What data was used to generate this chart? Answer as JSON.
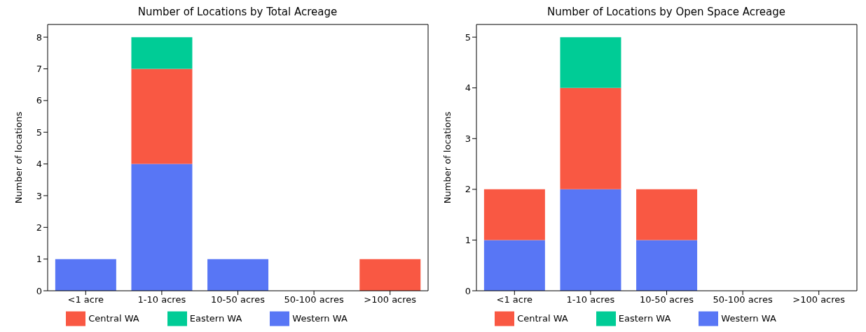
{
  "chart_data": [
    {
      "type": "bar",
      "title": "Number of Locations by Total Acreage",
      "ylabel": "Number of locations",
      "categories": [
        "<1 acre",
        "1-10 acres",
        "10-50 acres",
        "50-100 acres",
        ">100 acres"
      ],
      "stacked": true,
      "ylim": [
        0,
        8.4
      ],
      "yticks": [
        0,
        1,
        2,
        3,
        4,
        5,
        6,
        7,
        8
      ],
      "grid": false,
      "legend": "bottom",
      "series": [
        {
          "name": "Western WA",
          "color": "#5876f5",
          "values": [
            1,
            4,
            1,
            0,
            0
          ]
        },
        {
          "name": "Central WA",
          "color": "#f95843",
          "values": [
            0,
            3,
            0,
            0,
            1
          ]
        },
        {
          "name": "Eastern WA",
          "color": "#00cc96",
          "values": [
            0,
            1,
            0,
            0,
            0
          ]
        }
      ]
    },
    {
      "type": "bar",
      "title": "Number of Locations by Open Space Acreage",
      "ylabel": "Number of locations",
      "categories": [
        "<1 acre",
        "1-10 acres",
        "10-50 acres",
        "50-100 acres",
        ">100 acres"
      ],
      "stacked": true,
      "ylim": [
        0,
        5.25
      ],
      "yticks": [
        0,
        1,
        2,
        3,
        4,
        5
      ],
      "grid": false,
      "legend": "bottom",
      "series": [
        {
          "name": "Western WA",
          "color": "#5876f5",
          "values": [
            1,
            2,
            1,
            0,
            0
          ]
        },
        {
          "name": "Central WA",
          "color": "#f95843",
          "values": [
            1,
            2,
            1,
            0,
            0
          ]
        },
        {
          "name": "Eastern WA",
          "color": "#00cc96",
          "values": [
            0,
            1,
            0,
            0,
            0
          ]
        }
      ]
    }
  ]
}
